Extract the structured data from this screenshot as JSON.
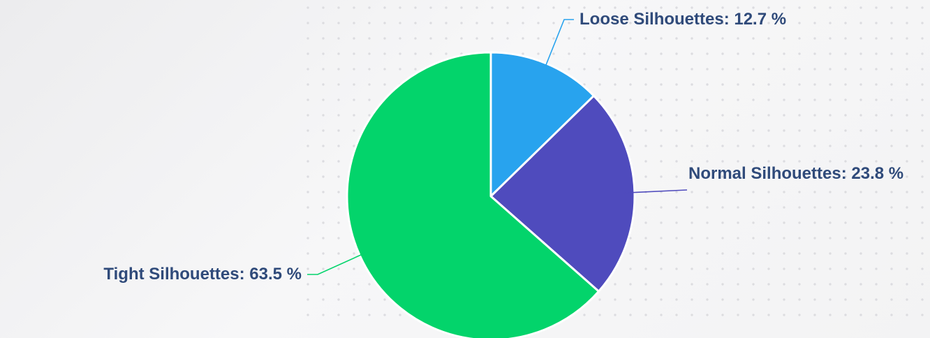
{
  "chart_data": {
    "type": "pie",
    "values": [
      12.7,
      23.8,
      63.5
    ],
    "value_labels": [
      "Loose Silhouettes: 12.7 %",
      "Normal Silhouettes: 23.8 %",
      "Tight Silhouettes: 63.5 %"
    ],
    "colors": [
      "#28a3ee",
      "#4f4bbd",
      "#03d46b"
    ]
  }
}
